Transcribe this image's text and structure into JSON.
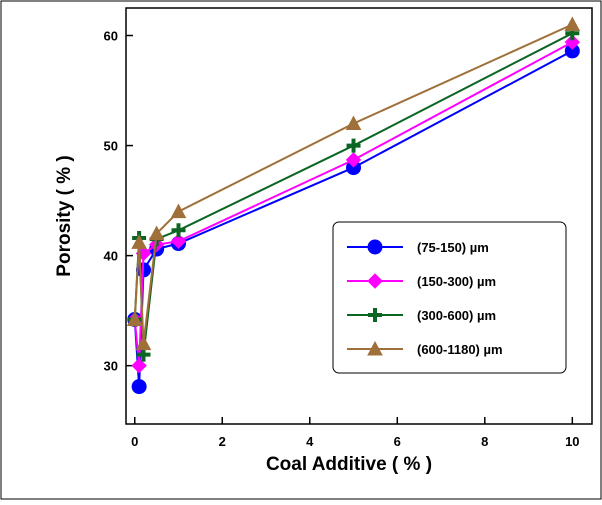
{
  "chart_data": {
    "type": "line",
    "x_label": "Coal Additive  ( % )",
    "y_label": "Porosity ( % )",
    "x": [
      0,
      0.1,
      0.2,
      0.5,
      1,
      5,
      10
    ],
    "series": [
      {
        "name": "(75-150) µm",
        "color": "#0000ff",
        "marker": "circle",
        "values": [
          34.2,
          28.1,
          38.7,
          40.6,
          41.1,
          48.0,
          58.6
        ]
      },
      {
        "name": "(150-300) µm",
        "color": "#ff00ff",
        "marker": "diamond",
        "values": [
          34.2,
          30.0,
          40.2,
          41.0,
          41.3,
          48.7,
          59.4
        ]
      },
      {
        "name": "(300-600) µm",
        "color": "#0b6623",
        "marker": "plus",
        "values": [
          34.2,
          41.6,
          31.0,
          41.5,
          42.3,
          50.0,
          60.2
        ]
      },
      {
        "name": "(600-1180) µm",
        "color": "#a0703a",
        "marker": "triangle",
        "values": [
          34.2,
          41.2,
          32.0,
          42.0,
          44.0,
          52.0,
          61.0
        ]
      }
    ],
    "xlim": [
      -0.2,
      10.45
    ],
    "xticks": [
      0,
      2,
      4,
      6,
      8,
      10
    ],
    "ylim": [
      24.7,
      62.5
    ],
    "yticks": [
      30,
      40,
      50,
      60
    ],
    "legend": "right"
  }
}
